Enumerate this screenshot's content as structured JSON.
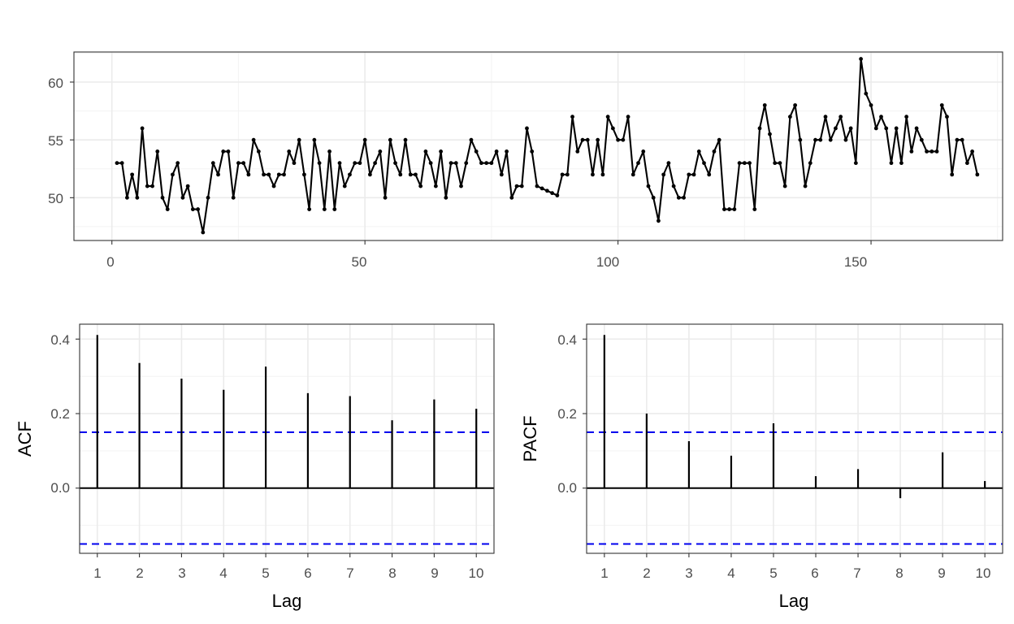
{
  "colors": {
    "series": "#000000",
    "ci_line": "#0000ee",
    "grid_major": "#ebebeb",
    "grid_minor": "#f3f3f3",
    "panel_border": "#333333",
    "tick_label": "#4d4d4d"
  },
  "chart_data": [
    {
      "type": "line",
      "markers": true,
      "x": [
        1,
        2,
        3,
        4,
        5,
        6,
        7,
        8,
        9,
        10,
        11,
        12,
        13,
        14,
        15,
        16,
        17,
        18,
        19,
        20,
        21,
        22,
        23,
        24,
        25,
        26,
        27,
        28,
        29,
        30,
        31,
        32,
        33,
        34,
        35,
        36,
        37,
        38,
        39,
        40,
        41,
        42,
        43,
        44,
        45,
        46,
        47,
        48,
        49,
        50,
        51,
        52,
        53,
        54,
        55,
        56,
        57,
        58,
        59,
        60,
        61,
        62,
        63,
        64,
        65,
        66,
        67,
        68,
        69,
        70,
        71,
        72,
        73,
        74,
        75,
        76,
        77,
        78,
        79,
        80,
        81,
        82,
        83,
        84,
        85,
        86,
        87,
        88,
        89,
        90,
        91,
        92,
        93,
        94,
        95,
        96,
        97,
        98,
        99,
        100,
        101,
        102,
        103,
        104,
        105,
        106,
        107,
        108,
        109,
        110,
        111,
        112,
        113,
        114,
        115,
        116,
        117,
        118,
        119,
        120,
        121,
        122,
        123,
        124,
        125,
        126,
        127,
        128,
        129,
        130,
        131,
        132,
        133,
        134,
        135,
        136,
        137,
        138,
        139,
        140,
        141,
        142,
        143,
        144,
        145,
        146,
        147,
        148,
        149,
        150,
        151,
        152,
        153,
        154,
        155,
        156,
        157,
        158,
        159,
        160,
        161,
        162,
        163,
        164,
        165,
        166,
        167,
        168,
        169,
        170,
        171
      ],
      "y": [
        53,
        53,
        50,
        52,
        50,
        56,
        51,
        51,
        54,
        50,
        49,
        52,
        53,
        50,
        51,
        49,
        49,
        47,
        50,
        53,
        52,
        54,
        54,
        50,
        53,
        53,
        52,
        55,
        54,
        52,
        52,
        51,
        52,
        52,
        54,
        53,
        55,
        52,
        49,
        55,
        53,
        49,
        54,
        49,
        53,
        51,
        52,
        53,
        53,
        55,
        52,
        53,
        54,
        50,
        55,
        53,
        52,
        55,
        52,
        52,
        51,
        54,
        53,
        51,
        54,
        50,
        53,
        53,
        51,
        53,
        55,
        54,
        53,
        53,
        53,
        54,
        52,
        54,
        50,
        51,
        51,
        56,
        54,
        51,
        50.8,
        50.6,
        50.4,
        50.2,
        52,
        52,
        57,
        54,
        55,
        55,
        52,
        55,
        52,
        57,
        56,
        55,
        55,
        57,
        52,
        53,
        54,
        51,
        50,
        48,
        52,
        53,
        51,
        50,
        50,
        52,
        52,
        54,
        53,
        52,
        54,
        55,
        49,
        49,
        49,
        53,
        53,
        53,
        49,
        56,
        58,
        55.5,
        53,
        53,
        51,
        57,
        58,
        55,
        51,
        53,
        55,
        55,
        57,
        55,
        56,
        57,
        55,
        56,
        53,
        62,
        59,
        58,
        56,
        57,
        56,
        53,
        56,
        53,
        57,
        54,
        56,
        55,
        54,
        54,
        54,
        58,
        57,
        52,
        55,
        55,
        53,
        54,
        52
      ],
      "xlim": [
        -7.5,
        176
      ],
      "ylim": [
        46.3,
        62.6
      ],
      "x_ticks": [
        "0",
        "50",
        "100",
        "150"
      ],
      "y_ticks": [
        "50",
        "55",
        "60"
      ],
      "grid": true
    },
    {
      "type": "bar",
      "style": "stem",
      "ylabel": "ACF",
      "xlabel": "Lag",
      "categories": [
        "1",
        "2",
        "3",
        "4",
        "5",
        "6",
        "7",
        "8",
        "9",
        "10"
      ],
      "values": [
        0.411,
        0.336,
        0.294,
        0.264,
        0.326,
        0.255,
        0.247,
        0.182,
        0.238,
        0.213
      ],
      "ci": 0.15,
      "ylim": [
        -0.175,
        0.44
      ],
      "y_ticks": [
        "0.0",
        "0.2",
        "0.4"
      ],
      "grid": true
    },
    {
      "type": "bar",
      "style": "stem",
      "ylabel": "PACF",
      "xlabel": "Lag",
      "categories": [
        "1",
        "2",
        "3",
        "4",
        "5",
        "6",
        "7",
        "8",
        "9",
        "10"
      ],
      "values": [
        0.411,
        0.2,
        0.126,
        0.087,
        0.174,
        0.032,
        0.051,
        -0.027,
        0.096,
        0.019
      ],
      "ci": 0.15,
      "ylim": [
        -0.175,
        0.44
      ],
      "y_ticks": [
        "0.0",
        "0.2",
        "0.4"
      ],
      "grid": true
    }
  ]
}
